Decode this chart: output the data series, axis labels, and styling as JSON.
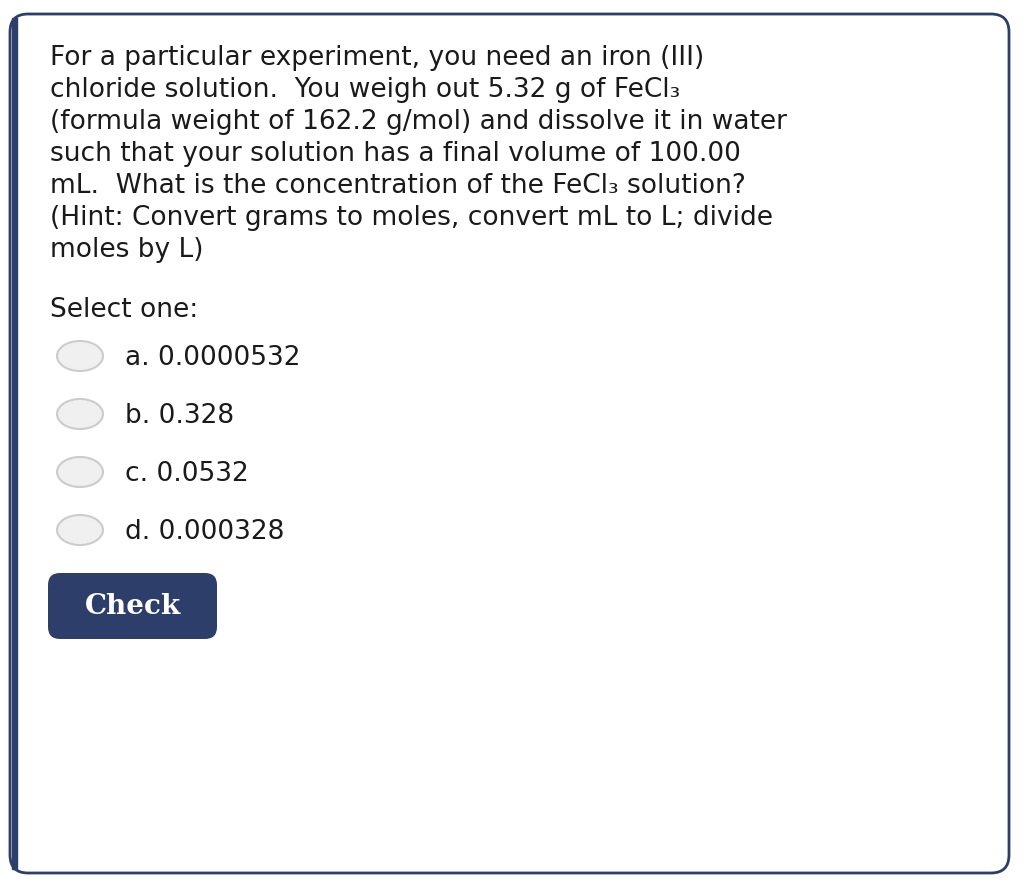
{
  "bg_color": "#ffffff",
  "border_color": "#2d3e6b",
  "question_lines": [
    "For a particular experiment, you need an iron (III)",
    "chloride solution.  You weigh out 5.32 g of FeCl₃",
    "(formula weight of 162.2 g/mol) and dissolve it in water",
    "such that your solution has a final volume of 100.00",
    "mL.  What is the concentration of the FeCl₃ solution?",
    "(Hint: Convert grams to moles, convert mL to L; divide",
    "moles by L)"
  ],
  "select_label": "Select one:",
  "options": [
    "a. 0.0000532",
    "b. 0.328",
    "c. 0.0532",
    "d. 0.000328"
  ],
  "button_text": "Check",
  "button_color": "#2d3e6b",
  "button_text_color": "#ffffff",
  "text_color": "#1a1a1a",
  "radio_border_color": "#cccccc",
  "radio_fill_color": "#f0f0f0",
  "font_size_question": 19,
  "font_size_options": 19,
  "font_size_select": 19,
  "font_size_button": 20,
  "left_bar_color": "#2d3e6b",
  "left_bar_width": 5
}
